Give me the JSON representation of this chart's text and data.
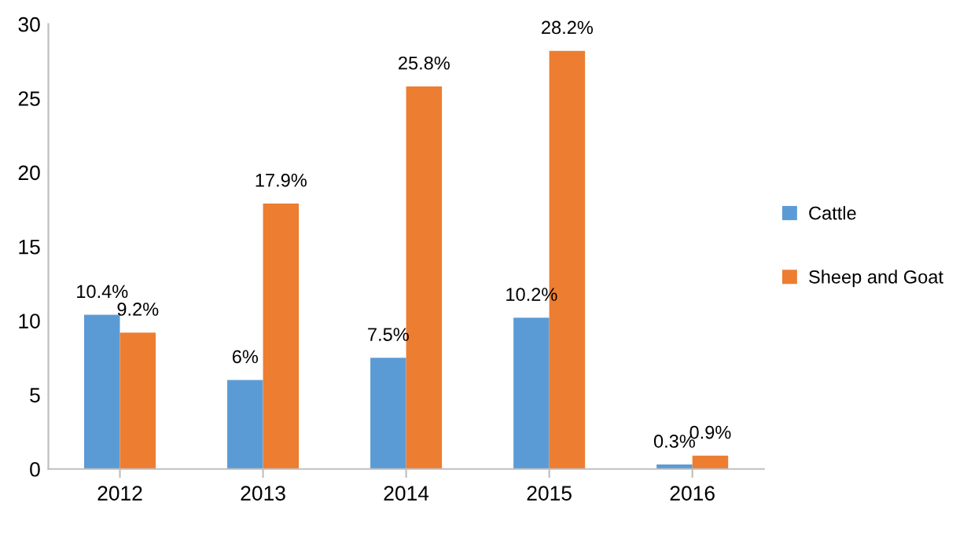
{
  "chart_data": {
    "type": "bar",
    "categories": [
      "2012",
      "2013",
      "2014",
      "2015",
      "2016"
    ],
    "series": [
      {
        "name": "Cattle",
        "color": "#5b9bd5",
        "values": [
          10.4,
          6,
          7.5,
          10.2,
          0.3
        ],
        "value_labels": [
          "10.4%",
          "6%",
          "7.5%",
          "10.2%",
          "0.3%"
        ]
      },
      {
        "name": "Sheep and Goat",
        "color": "#ed7d31",
        "values": [
          9.2,
          17.9,
          25.8,
          28.2,
          0.9
        ],
        "value_labels": [
          "9.2%",
          "17.9%",
          "25.8%",
          "28.2%",
          "0.9%"
        ]
      }
    ],
    "ylim": [
      0,
      30
    ],
    "yticks": [
      0,
      5,
      10,
      15,
      20,
      25,
      30
    ],
    "grid": false,
    "legend": "right"
  }
}
